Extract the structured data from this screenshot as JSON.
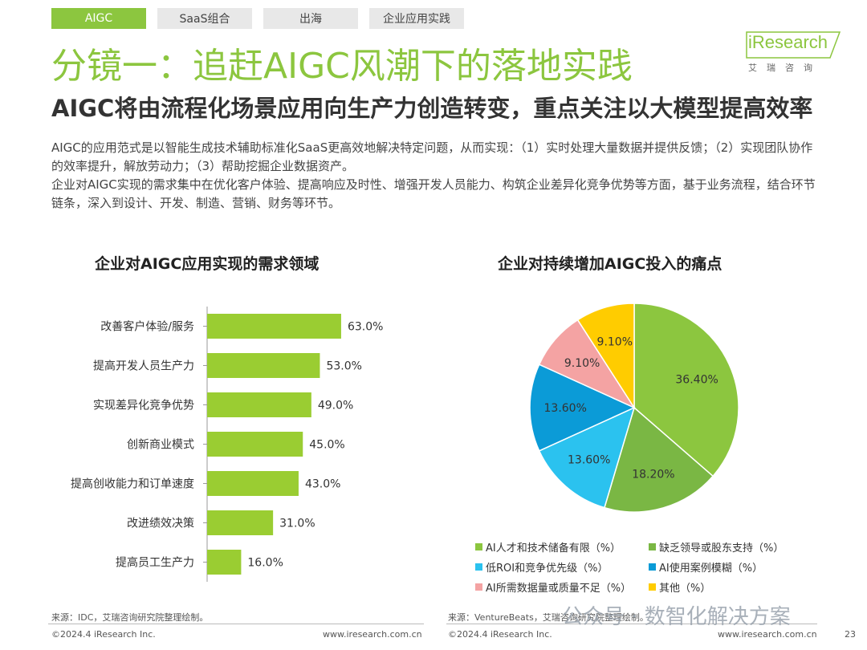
{
  "tabs": [
    "AIGC",
    "SaaS组合",
    "出海",
    "企业应用实践"
  ],
  "logo": {
    "word": "iResearch",
    "sub": "艾瑞咨询"
  },
  "title": "分镜一：追赶AIGC风潮下的落地实践",
  "subtitle": "AIGC将由流程化场景应用向生产力创造转变，重点关注以大模型提高效率",
  "paragraphs": [
    "AIGC的应用范式是以智能生成技术辅助标准化SaaS更高效地解决特定问题，从而实现：（1）实时处理大量数据并提供反馈；（2）实现团队协作的效率提升，解放劳动力；（3）帮助挖掘企业数据资产。",
    "企业对AIGC实现的需求集中在优化客户体验、提高响应及时性、增强开发人员能力、构筑企业差异化竞争优势等方面，基于业务流程，结合环节链条，深入到设计、开发、制造、营销、财务等环节。"
  ],
  "chart_data": [
    {
      "type": "bar",
      "orientation": "horizontal",
      "title": "企业对AIGC应用实现的需求领域",
      "categories": [
        "改善客户体验/服务",
        "提高开发人员生产力",
        "实现差异化竞争优势",
        "创新商业模式",
        "提高创收能力和订单速度",
        "改进绩效决策",
        "提高员工生产力"
      ],
      "values": [
        63.0,
        53.0,
        49.0,
        45.0,
        43.0,
        31.0,
        16.0
      ],
      "labels": [
        "63.0%",
        "53.0%",
        "49.0%",
        "45.0%",
        "43.0%",
        "31.0%",
        "16.0%"
      ],
      "unit": "%",
      "color": "#9acd32",
      "xlim": [
        0,
        100
      ],
      "grid": false
    },
    {
      "type": "pie",
      "title": "企业对持续增加AIGC投入的痛点",
      "slices": [
        {
          "name": "AI人才和技术储备有限（%）",
          "value": 36.4,
          "label": "36.40%",
          "color": "#8cc63f"
        },
        {
          "name": "缺乏领导或股东支持（%）",
          "value": 18.2,
          "label": "18.20%",
          "color": "#7ab744"
        },
        {
          "name": "低ROI和竞争优先级（%）",
          "value": 13.6,
          "label": "13.60%",
          "color": "#2bc2ef"
        },
        {
          "name": "AI使用案例模糊（%）",
          "value": 13.6,
          "label": "13.60%",
          "color": "#0b9bd7"
        },
        {
          "name": "AI所需数据量或质量不足（%）",
          "value": 9.1,
          "label": "9.10%",
          "color": "#f4a3a3"
        },
        {
          "name": "其他（%）",
          "value": 9.1,
          "label": "9.10%",
          "color": "#ffcc00"
        }
      ],
      "legend_position": "bottom"
    }
  ],
  "sources": {
    "left": "来源：IDC，艾瑞咨询研究院整理绘制。",
    "right": "来源：VentureBeats，艾瑞咨询研究院整理绘制。"
  },
  "footer": {
    "copyright_left": "©2024.4 iResearch Inc.",
    "url_left": "www.iresearch.com.cn",
    "copyright_right": "©2024.4 iResearch Inc.",
    "url_right": "www.iresearch.com.cn",
    "page": "23"
  },
  "watermark": "公众号 · 数智化解决方案"
}
